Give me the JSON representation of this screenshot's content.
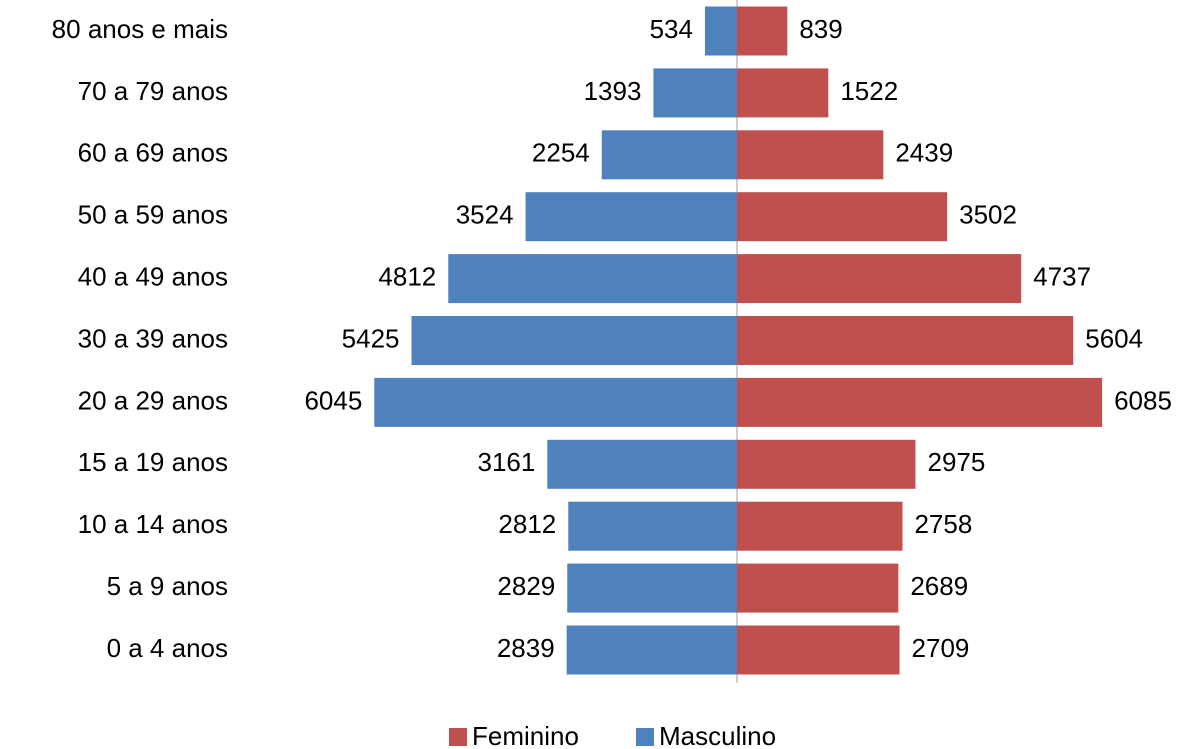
{
  "chart_data": {
    "type": "bar",
    "categories": [
      "80 anos e mais",
      "70 a 79 anos",
      "60 a 69 anos",
      "50 a 59 anos",
      "40 a 49 anos",
      "30 a 39 anos",
      "20 a 29 anos",
      "15 a 19 anos",
      "10 a 14 anos",
      "5 a 9 anos",
      "0 a 4 anos"
    ],
    "series": [
      {
        "name": "Feminino",
        "color": "#c0504d",
        "values": [
          839,
          1522,
          2439,
          3502,
          4737,
          5604,
          6085,
          2975,
          2758,
          2689,
          2709
        ]
      },
      {
        "name": "Masculino",
        "color": "#4f81bd",
        "values": [
          534,
          1393,
          2254,
          3524,
          4812,
          5425,
          6045,
          3161,
          2812,
          2829,
          2839
        ]
      }
    ],
    "legend": "bottom"
  }
}
